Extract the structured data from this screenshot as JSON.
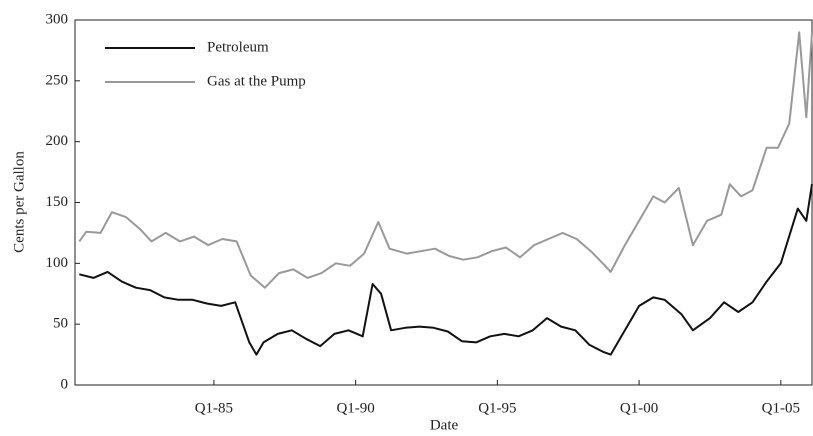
{
  "chart_data": {
    "type": "line",
    "xlabel": "Date",
    "ylabel": "Cents per Gallon",
    "xlim": [
      1980.1,
      2006.1
    ],
    "ylim": [
      0,
      300
    ],
    "xticks": [
      {
        "value": 1985,
        "label": "Q1-85"
      },
      {
        "value": 1990,
        "label": "Q1-90"
      },
      {
        "value": 1995,
        "label": "Q1-95"
      },
      {
        "value": 2000,
        "label": "Q1-00"
      },
      {
        "value": 2005,
        "label": "Q1-05"
      }
    ],
    "yticks": [
      0,
      50,
      100,
      150,
      200,
      250,
      300
    ],
    "legend": "upper left",
    "series": [
      {
        "name": "Petroleum",
        "color": "#111111",
        "x": [
          1980.25,
          1980.75,
          1981.25,
          1981.75,
          1982.25,
          1982.75,
          1983.25,
          1983.75,
          1984.25,
          1984.75,
          1985.25,
          1985.75,
          1986.25,
          1986.5,
          1986.75,
          1987.25,
          1987.75,
          1988.25,
          1988.75,
          1989.25,
          1989.75,
          1990.25,
          1990.6,
          1990.9,
          1991.25,
          1991.75,
          1992.25,
          1992.75,
          1993.25,
          1993.75,
          1994.25,
          1994.75,
          1995.25,
          1995.75,
          1996.25,
          1996.75,
          1997.25,
          1997.75,
          1998.25,
          1998.75,
          1999.0,
          1999.5,
          2000.0,
          2000.5,
          2000.9,
          2001.5,
          2001.9,
          2002.5,
          2003.0,
          2003.5,
          2004.0,
          2004.5,
          2005.0,
          2005.6,
          2005.9,
          2006.1
        ],
        "values": [
          91,
          88,
          93,
          85,
          80,
          78,
          72,
          70,
          70,
          67,
          65,
          68,
          35,
          25,
          35,
          42,
          45,
          38,
          32,
          42,
          45,
          40,
          83,
          75,
          45,
          47,
          48,
          47,
          44,
          36,
          35,
          40,
          42,
          40,
          45,
          55,
          48,
          45,
          33,
          27,
          25,
          45,
          65,
          72,
          70,
          58,
          45,
          55,
          68,
          60,
          68,
          85,
          100,
          145,
          135,
          165
        ]
      },
      {
        "name": "Gas at the Pump",
        "color": "#999999",
        "x": [
          1980.25,
          1980.5,
          1981.0,
          1981.4,
          1981.9,
          1982.4,
          1982.8,
          1983.3,
          1983.8,
          1984.3,
          1984.8,
          1985.3,
          1985.8,
          1986.3,
          1986.8,
          1987.3,
          1987.8,
          1988.3,
          1988.8,
          1989.3,
          1989.8,
          1990.3,
          1990.8,
          1991.2,
          1991.8,
          1992.3,
          1992.8,
          1993.3,
          1993.8,
          1994.3,
          1994.8,
          1995.3,
          1995.8,
          1996.3,
          1996.8,
          1997.3,
          1997.8,
          1998.3,
          1998.8,
          1999.0,
          1999.5,
          2000.0,
          2000.5,
          2000.9,
          2001.4,
          2001.9,
          2002.4,
          2002.9,
          2003.2,
          2003.6,
          2004.0,
          2004.5,
          2004.9,
          2005.3,
          2005.65,
          2005.9,
          2006.1
        ],
        "values": [
          118,
          126,
          125,
          142,
          138,
          128,
          118,
          125,
          118,
          122,
          115,
          120,
          118,
          90,
          80,
          92,
          95,
          88,
          92,
          100,
          98,
          108,
          134,
          112,
          108,
          110,
          112,
          106,
          103,
          105,
          110,
          113,
          105,
          115,
          120,
          125,
          120,
          110,
          98,
          93,
          115,
          135,
          155,
          150,
          162,
          115,
          135,
          140,
          165,
          155,
          160,
          195,
          195,
          215,
          290,
          220,
          290
        ]
      }
    ]
  }
}
